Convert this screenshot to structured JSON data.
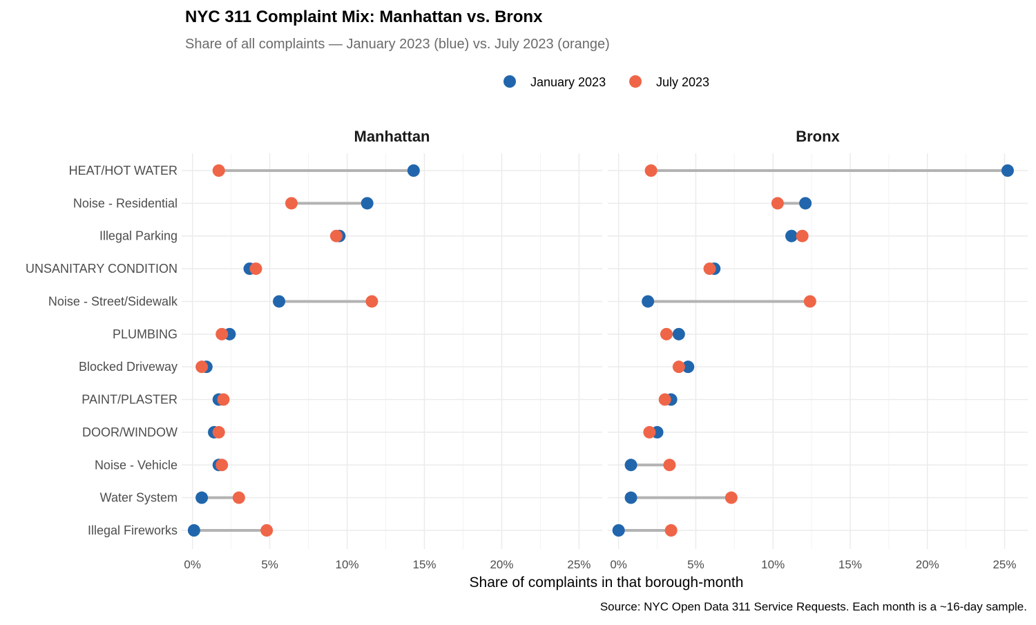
{
  "chart_data": {
    "type": "dumbbell",
    "title": "NYC 311 Complaint Mix: Manhattan vs. Bronx",
    "subtitle": "Share of all complaints — January 2023 (blue) vs. July 2023 (orange)",
    "xlabel": "Share of complaints in that borough-month",
    "caption": "Source: NYC Open Data 311 Service Requests. Each month is a ~16-day sample.",
    "legend": {
      "placement": "top",
      "entries": [
        "January 2023",
        "July 2023"
      ]
    },
    "colors": {
      "January 2023": "#2166ac",
      "July 2023": "#ef6548",
      "segment": "#b3b3b3"
    },
    "x_ticks": [
      "0%",
      "5%",
      "10%",
      "15%",
      "20%",
      "25%"
    ],
    "x_tick_values": [
      0,
      5,
      10,
      15,
      20,
      25
    ],
    "xlim": [
      -0.7,
      26.5
    ],
    "grid": true,
    "categories": [
      "HEAT/HOT WATER",
      "Noise - Residential",
      "Illegal Parking",
      "UNSANITARY CONDITION",
      "Noise - Street/Sidewalk",
      "PLUMBING",
      "Blocked Driveway",
      "PAINT/PLASTER",
      "DOOR/WINDOW",
      "Noise - Vehicle",
      "Water System",
      "Illegal Fireworks"
    ],
    "panels": [
      {
        "name": "Manhattan",
        "series": [
          {
            "name": "January 2023",
            "values": [
              14.3,
              11.3,
              9.5,
              3.7,
              5.6,
              2.4,
              0.9,
              1.7,
              1.4,
              1.7,
              0.6,
              0.1
            ]
          },
          {
            "name": "July 2023",
            "values": [
              1.7,
              6.4,
              9.3,
              4.1,
              11.6,
              1.9,
              0.6,
              2.0,
              1.7,
              1.9,
              3.0,
              4.8
            ]
          }
        ]
      },
      {
        "name": "Bronx",
        "series": [
          {
            "name": "January 2023",
            "values": [
              25.2,
              12.1,
              11.2,
              6.2,
              1.9,
              3.9,
              4.5,
              3.4,
              2.5,
              0.8,
              0.8,
              0.0
            ]
          },
          {
            "name": "July 2023",
            "values": [
              2.1,
              10.3,
              11.9,
              5.9,
              12.4,
              3.1,
              3.9,
              3.0,
              2.0,
              3.3,
              7.3,
              3.4
            ]
          }
        ]
      }
    ]
  }
}
